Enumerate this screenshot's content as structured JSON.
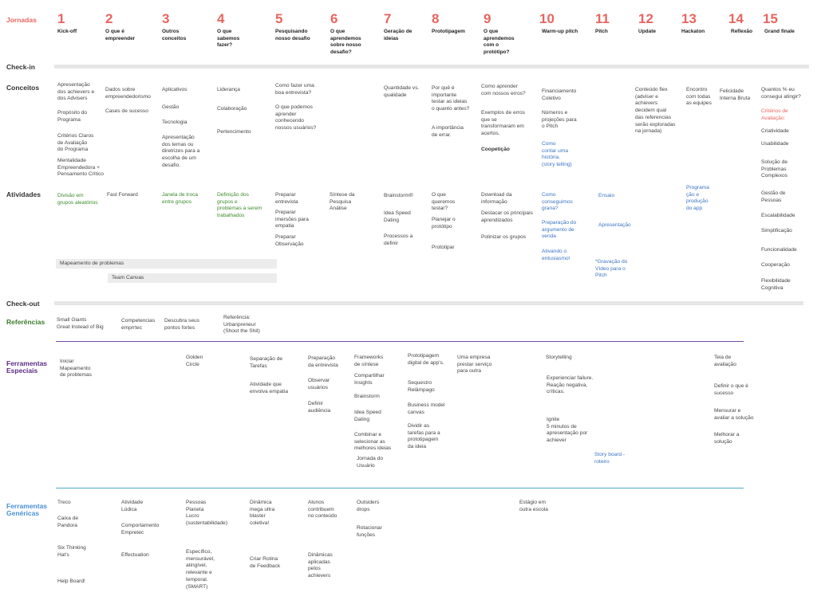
{
  "row_labels": {
    "jornadas": "Jornadas",
    "checkin": "Check-in",
    "conceitos": "Conceitos",
    "atividades": "Atividades",
    "checkout": "Check-out",
    "referencias": "Referências",
    "ferr_especiais": "Ferramentas\nEspeciais",
    "ferr_genericas": "Ferramentas\nGenéricas"
  },
  "columns": [
    {
      "n": "1",
      "title": "Kick-off"
    },
    {
      "n": "2",
      "title": "O que é\nempreender"
    },
    {
      "n": "3",
      "title": "Outros\nconceitos"
    },
    {
      "n": "4",
      "title": "O que\nsabemos\nfazer?"
    },
    {
      "n": "5",
      "title": "Pesquisando\nnosso desafio"
    },
    {
      "n": "6",
      "title": "O que\naprendemos\nsobre nosso\ndesafio?"
    },
    {
      "n": "7",
      "title": "Geração de\nideias"
    },
    {
      "n": "8",
      "title": "Prototipagem"
    },
    {
      "n": "9",
      "title": "O que\naprendemos\ncom o\nprotótipo?"
    },
    {
      "n": "10",
      "title": "Warm-up pitch"
    },
    {
      "n": "11",
      "title": "Pitch"
    },
    {
      "n": "12",
      "title": "Update"
    },
    {
      "n": "13",
      "title": "Hackaton"
    },
    {
      "n": "14",
      "title": "Reflexão"
    },
    {
      "n": "15",
      "title": "Grand finale"
    }
  ],
  "conceitos": [
    "Apresentação\ndos achievers e\ndos Advisers",
    "Propósito do\nPrograma",
    "Critérios Claros\nde Avaliação\ndo Programa",
    "Mentalidade\nEmpreendedora +\nPensamento Crítico",
    "Dados sobre\nempreendedorismo",
    "Cases de sucesso",
    "Aplicativos",
    "Gestão",
    "Tecnologia",
    "Apresentação\ndos temas ou\ndiretrizes para a\nescolha de um\ndesafio.",
    "Liderança",
    "Colaboração",
    "Pertencimento",
    "Como fazer uma\nboa entrevista?",
    "O que podemos\naprender\nconhecendo\nnossos usuários?",
    "Quantidade vs.\nqualidade",
    "Por quê é\nimportante\ntestar as ideias\no quanto antes?",
    "A importância\nde errar.",
    "Como aprender\ncom nossos erros?",
    "Exemplos de erros\nque se\ntransformaram em\nacertos.",
    "Coopetição",
    "Financiamento\nColetivo",
    "Números e\nprojeções para\no Pitch",
    "Como\ncontar uma\nhistória.\n(story telling)",
    "Conteúdo flex\n(adviser e\nachievers\ndecidem qual\ndas referencias\nserão exploradas\nna jornada)",
    "Encontro\ncom todas\nas equipes",
    "Felicidade\nInterna Bruta",
    "Quantos % eu\nconsegui atingir?",
    "Critérios de\nAvaliação:",
    "Criatividade",
    "Usabilidade",
    "Solução de\nProblemas\nComplexos",
    "Gestão de\nPessoas",
    "Escalabilidade",
    "Simplificação",
    "Funcionalidade",
    "Cooperação",
    "Flexibilidade\nCognitiva"
  ],
  "atividades": [
    "Divisão em\ngrupos aleatórios",
    "Fast Forward",
    "Janela de troca\nentre grupos",
    "Definição dos\ngrupos e\nproblemas a serem\ntrabalhados",
    "Preparar\nentrevista",
    "Preparar\nimersões para\nempatia",
    "Preparar\nObservação",
    "Síntese da\nPesquisa\nAnálise",
    "Brainstorm®",
    "Idea Speed\nDating",
    "Processos a\ndefinir",
    "O que\nqueremos\ntestar?",
    "Planejar o\nprotótipo",
    "Prototipar",
    "Download da\ninformação",
    "Destacar os principais\naprendizados",
    "Polinizar os grupos",
    "Como\nconseguimos\ngrana?",
    "Preparação do\nargumento de\nvenda",
    "Ativando o\nentusiasmo!",
    "Ensaio",
    "Apresentação",
    "*Gravação do\nVídeo para o\nPitch",
    "Programa\nção  e\nprodução\ndo app"
  ],
  "bars": {
    "mapeamento": "Mapeamento de problemas",
    "team_canvas": "Team Canvas"
  },
  "referencias": [
    "Small Giants\nGreat Instead of Big",
    "Competencias\nemprrtec",
    "Descubra seus\npontos fortes",
    "Referência:\nUrbanpreneur\n(Shoot the Shit)"
  ],
  "especiais": [
    "Iniciar\nMapeamento\nde problemas",
    "Golden\nCircle",
    "Separação de\nTarefas",
    "Atividade que\nenvolva empatia",
    "Preparação\nda entrevista",
    "Observar\nusuários",
    "Definir\naudiência",
    "Frameworks\nde síntese",
    "Compartilhar\nInsights",
    "Brainstorm",
    "Idea Speed\nDating",
    "Combinar e\nselecionar as\nmelhores ideias",
    "Jornada do\nUsuário",
    "Prototipagem\ndigital de app's.",
    "Sequestro\nRelâmpago",
    "Business model\ncanvas",
    "Dividir as\ntarefas para a\nprototipagem\nda ideia",
    "Uma empresa\nprestar serviço\npara outra",
    "Storytelling",
    "Experienciar failure.\nReação negativa,\ncríticas.",
    "Ignite\n5 minutos de\napresentação por\nachiever",
    "Story board -\nroteiro",
    "Teia de\navaliação",
    "Definir o que é\nsucesso",
    "Mensurar e\navaliar a solução",
    "Melhorar a\nsolução"
  ],
  "genericas": [
    "Treco",
    "Caixa de\nPandora",
    "Six Thinking\nHat's",
    "Help Board!",
    "Atividade\nLúdica",
    "Comportamento\nEmpretec",
    "Effectuation",
    "Pessoas\nPlaneta\nLucro\n(sustentabilidade)",
    "Específico,\nmensurável,\natingível,\nrelevante e\ntemporal.\n(SMART)",
    "Dinâmica\nmega ultra\nblaster\ncoletiva!",
    "Criar Rotina\nde Feedback",
    "Alunos\ncontribuem\nno conteúdo",
    "Dinâmicas\naplicadas\npelos\nachievers",
    "Outsiders\ndrops",
    "Rotacionar\nfunções",
    "Estágio em\noutra escola"
  ],
  "colors": {
    "number": "#e8655f",
    "green": "#3a8a2a",
    "purple": "#5b2a86",
    "blue": "#4a90d9",
    "gray_bar": "#e6e6e6"
  }
}
